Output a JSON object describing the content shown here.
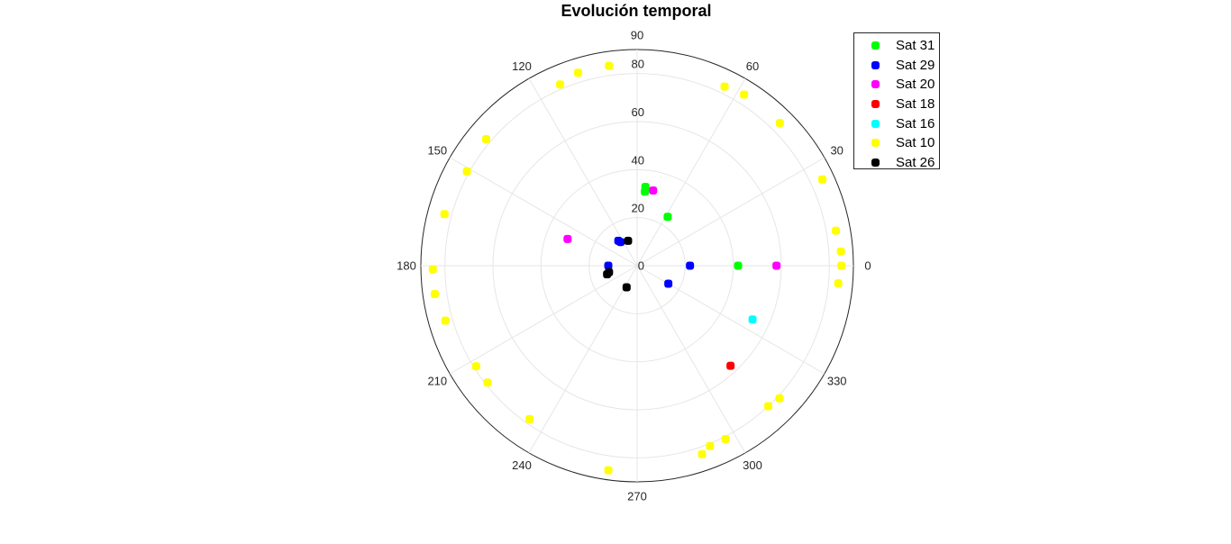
{
  "chart_data": {
    "type": "scatter",
    "coordinate_system": "polar",
    "title": "Evolución temporal",
    "theta_ticks": [
      "0",
      "30",
      "60",
      "90",
      "120",
      "150",
      "180",
      "210",
      "240",
      "270",
      "300",
      "330"
    ],
    "r_ticks": [
      "0",
      "20",
      "40",
      "60",
      "80"
    ],
    "r_lim": [
      0,
      90
    ],
    "grid": true,
    "legend_position": "top-right",
    "series": [
      {
        "name": "Sat 31",
        "color": "#00ff00",
        "points": [
          [
            0,
            42
          ],
          [
            58,
            24
          ],
          [
            84,
            31
          ],
          [
            84,
            33
          ]
        ]
      },
      {
        "name": "Sat 29",
        "color": "#0000ff",
        "points": [
          [
            0,
            22
          ],
          [
            330,
            15
          ],
          [
            125,
            12
          ],
          [
            180,
            12
          ],
          [
            127,
            13
          ]
        ]
      },
      {
        "name": "Sat 20",
        "color": "#ff00ff",
        "points": [
          [
            0,
            58
          ],
          [
            159,
            31
          ],
          [
            78,
            32
          ]
        ]
      },
      {
        "name": "Sat 18",
        "color": "#ff0000",
        "points": [
          [
            313,
            57
          ]
        ]
      },
      {
        "name": "Sat 16",
        "color": "#00ffff",
        "points": [
          [
            335,
            53
          ]
        ]
      },
      {
        "name": "Sat 10",
        "color": "#ffff00",
        "points": [
          [
            0,
            85
          ],
          [
            4,
            85
          ],
          [
            10,
            84
          ],
          [
            355,
            84
          ],
          [
            25,
            85
          ],
          [
            45,
            84
          ],
          [
            58,
            84
          ],
          [
            64,
            83
          ],
          [
            98,
            84
          ],
          [
            107,
            84
          ],
          [
            113,
            82
          ],
          [
            140,
            82
          ],
          [
            151,
            81
          ],
          [
            165,
            83
          ],
          [
            181,
            85
          ],
          [
            188,
            85
          ],
          [
            196,
            83
          ],
          [
            212,
            79
          ],
          [
            218,
            79
          ],
          [
            235,
            78
          ],
          [
            262,
            86
          ],
          [
            289,
            83
          ],
          [
            292,
            81
          ],
          [
            297,
            81
          ],
          [
            313,
            80
          ],
          [
            317,
            81
          ]
        ]
      },
      {
        "name": "Sat 26",
        "color": "#000000",
        "points": [
          [
            110,
            11
          ],
          [
            193,
            12
          ],
          [
            196,
            13
          ],
          [
            244,
            10
          ]
        ]
      }
    ]
  }
}
